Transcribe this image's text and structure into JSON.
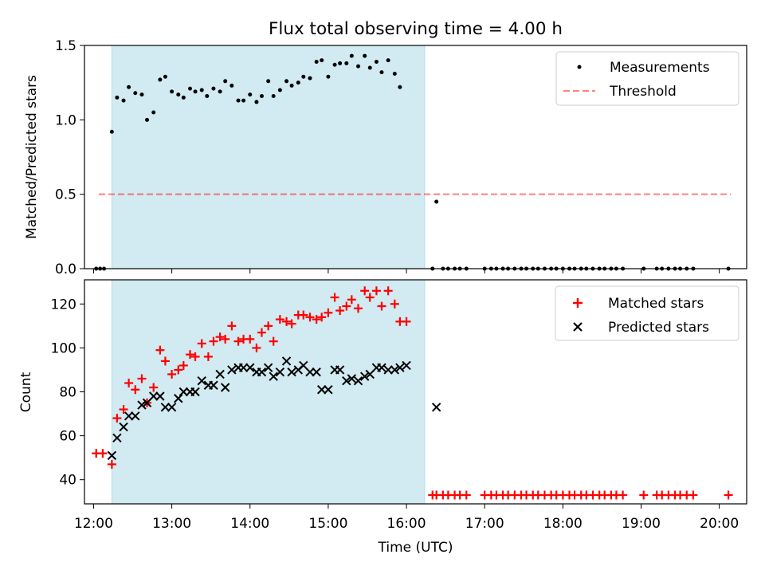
{
  "figure": {
    "title": "Flux total observing time = 4.00 h"
  },
  "chart_data": [
    {
      "type": "scatter",
      "panel": "top",
      "title": "Flux total observing time = 4.00 h",
      "xlabel": "",
      "ylabel": "Matched/Predicted stars",
      "xlim": [
        "11:53",
        "20:21"
      ],
      "ylim": [
        0.0,
        1.5
      ],
      "yticks": [
        0.0,
        0.5,
        1.0,
        1.5
      ],
      "ytick_labels": [
        "0.0",
        "0.5",
        "1.0",
        "1.5"
      ],
      "grid": false,
      "legend_position": "upper right",
      "shaded_span": {
        "start": "12:14",
        "end": "16:14",
        "color": "#add8e6"
      },
      "threshold": {
        "name": "Threshold",
        "value": 0.5,
        "x_start": "12:04",
        "x_end": "20:09",
        "color": "#ff0000",
        "style": "dashed"
      },
      "series": [
        {
          "name": "Measurements",
          "marker": "dot",
          "color": "#000000",
          "points": [
            [
              "12:02",
              0
            ],
            [
              "12:05",
              0
            ],
            [
              "12:08",
              0
            ],
            [
              "12:14",
              0.92
            ],
            [
              "12:18",
              1.15
            ],
            [
              "12:23",
              1.13
            ],
            [
              "12:27",
              1.22
            ],
            [
              "12:32",
              1.18
            ],
            [
              "12:37",
              1.17
            ],
            [
              "12:41",
              1.0
            ],
            [
              "12:46",
              1.05
            ],
            [
              "12:51",
              1.27
            ],
            [
              "12:55",
              1.29
            ],
            [
              "13:00",
              1.19
            ],
            [
              "13:05",
              1.17
            ],
            [
              "13:09",
              1.15
            ],
            [
              "13:14",
              1.21
            ],
            [
              "13:18",
              1.19
            ],
            [
              "13:23",
              1.2
            ],
            [
              "13:27",
              1.16
            ],
            [
              "13:32",
              1.21
            ],
            [
              "13:37",
              1.19
            ],
            [
              "13:41",
              1.26
            ],
            [
              "13:46",
              1.23
            ],
            [
              "13:51",
              1.13
            ],
            [
              "13:55",
              1.13
            ],
            [
              "14:00",
              1.17
            ],
            [
              "14:05",
              1.12
            ],
            [
              "14:09",
              1.16
            ],
            [
              "14:14",
              1.26
            ],
            [
              "14:18",
              1.16
            ],
            [
              "14:23",
              1.2
            ],
            [
              "14:28",
              1.26
            ],
            [
              "14:32",
              1.23
            ],
            [
              "14:37",
              1.25
            ],
            [
              "14:41",
              1.29
            ],
            [
              "14:46",
              1.28
            ],
            [
              "14:51",
              1.39
            ],
            [
              "14:55",
              1.4
            ],
            [
              "15:00",
              1.29
            ],
            [
              "15:05",
              1.37
            ],
            [
              "15:09",
              1.38
            ],
            [
              "15:14",
              1.38
            ],
            [
              "15:18",
              1.43
            ],
            [
              "15:23",
              1.36
            ],
            [
              "15:28",
              1.43
            ],
            [
              "15:32",
              1.35
            ],
            [
              "15:37",
              1.39
            ],
            [
              "15:41",
              1.32
            ],
            [
              "15:46",
              1.4
            ],
            [
              "15:51",
              1.31
            ],
            [
              "15:55",
              1.22
            ],
            [
              "16:23",
              0.45
            ],
            [
              "16:20",
              0
            ],
            [
              "16:28",
              0
            ],
            [
              "16:32",
              0
            ],
            [
              "16:37",
              0
            ],
            [
              "16:41",
              0
            ],
            [
              "16:46",
              0
            ],
            [
              "17:00",
              0
            ],
            [
              "17:05",
              0
            ],
            [
              "17:09",
              0
            ],
            [
              "17:14",
              0
            ],
            [
              "17:18",
              0
            ],
            [
              "17:23",
              0
            ],
            [
              "17:28",
              0
            ],
            [
              "17:32",
              0
            ],
            [
              "17:37",
              0
            ],
            [
              "17:41",
              0
            ],
            [
              "17:46",
              0
            ],
            [
              "17:51",
              0
            ],
            [
              "17:55",
              0
            ],
            [
              "18:00",
              0
            ],
            [
              "18:05",
              0
            ],
            [
              "18:09",
              0
            ],
            [
              "18:14",
              0
            ],
            [
              "18:18",
              0
            ],
            [
              "18:23",
              0
            ],
            [
              "18:28",
              0
            ],
            [
              "18:32",
              0
            ],
            [
              "18:37",
              0
            ],
            [
              "18:41",
              0
            ],
            [
              "18:46",
              0
            ],
            [
              "19:02",
              0
            ],
            [
              "19:12",
              0
            ],
            [
              "19:16",
              0
            ],
            [
              "19:21",
              0
            ],
            [
              "19:26",
              0
            ],
            [
              "19:30",
              0
            ],
            [
              "19:35",
              0
            ],
            [
              "19:40",
              0
            ],
            [
              "20:07",
              0
            ]
          ]
        }
      ]
    },
    {
      "type": "scatter",
      "panel": "bottom",
      "xlabel": "Time (UTC)",
      "ylabel": "Count",
      "xlim": [
        "11:53",
        "20:21"
      ],
      "ylim": [
        29,
        131
      ],
      "xticks": [
        "12:00",
        "13:00",
        "14:00",
        "15:00",
        "16:00",
        "17:00",
        "18:00",
        "19:00",
        "20:00"
      ],
      "yticks": [
        40,
        60,
        80,
        100,
        120
      ],
      "grid": false,
      "legend_position": "upper right",
      "shaded_span": {
        "start": "12:14",
        "end": "16:14",
        "color": "#add8e6"
      },
      "series": [
        {
          "name": "Matched stars",
          "marker": "plus",
          "color": "#ff0000",
          "points": [
            [
              "12:02",
              52
            ],
            [
              "12:07",
              52
            ],
            [
              "12:14",
              47
            ],
            [
              "12:18",
              68
            ],
            [
              "12:23",
              72
            ],
            [
              "12:27",
              84
            ],
            [
              "12:32",
              81
            ],
            [
              "12:37",
              86
            ],
            [
              "12:41",
              75
            ],
            [
              "12:46",
              82
            ],
            [
              "12:51",
              99
            ],
            [
              "12:55",
              94
            ],
            [
              "13:00",
              88
            ],
            [
              "13:05",
              90
            ],
            [
              "13:09",
              92
            ],
            [
              "13:14",
              97
            ],
            [
              "13:18",
              96
            ],
            [
              "13:23",
              102
            ],
            [
              "13:28",
              96
            ],
            [
              "13:32",
              103
            ],
            [
              "13:37",
              105
            ],
            [
              "13:41",
              104
            ],
            [
              "13:46",
              110
            ],
            [
              "13:51",
              103
            ],
            [
              "13:55",
              104
            ],
            [
              "14:00",
              104
            ],
            [
              "14:05",
              100
            ],
            [
              "14:09",
              107
            ],
            [
              "14:14",
              110
            ],
            [
              "14:18",
              103
            ],
            [
              "14:23",
              113
            ],
            [
              "14:28",
              112
            ],
            [
              "14:32",
              111
            ],
            [
              "14:37",
              115
            ],
            [
              "14:41",
              115
            ],
            [
              "14:46",
              114
            ],
            [
              "14:51",
              113
            ],
            [
              "14:55",
              114
            ],
            [
              "15:00",
              116
            ],
            [
              "15:05",
              123
            ],
            [
              "15:09",
              117
            ],
            [
              "15:14",
              119
            ],
            [
              "15:18",
              122
            ],
            [
              "15:23",
              118
            ],
            [
              "15:28",
              126
            ],
            [
              "15:32",
              123
            ],
            [
              "15:37",
              126
            ],
            [
              "15:41",
              119
            ],
            [
              "15:46",
              126
            ],
            [
              "15:51",
              120
            ],
            [
              "15:55",
              112
            ],
            [
              "16:00",
              112
            ],
            [
              "16:20",
              33
            ],
            [
              "16:23",
              33
            ],
            [
              "16:28",
              33
            ],
            [
              "16:32",
              33
            ],
            [
              "16:37",
              33
            ],
            [
              "16:41",
              33
            ],
            [
              "16:46",
              33
            ],
            [
              "17:00",
              33
            ],
            [
              "17:05",
              33
            ],
            [
              "17:09",
              33
            ],
            [
              "17:14",
              33
            ],
            [
              "17:18",
              33
            ],
            [
              "17:23",
              33
            ],
            [
              "17:28",
              33
            ],
            [
              "17:32",
              33
            ],
            [
              "17:37",
              33
            ],
            [
              "17:41",
              33
            ],
            [
              "17:46",
              33
            ],
            [
              "17:51",
              33
            ],
            [
              "17:55",
              33
            ],
            [
              "18:00",
              33
            ],
            [
              "18:05",
              33
            ],
            [
              "18:09",
              33
            ],
            [
              "18:14",
              33
            ],
            [
              "18:18",
              33
            ],
            [
              "18:23",
              33
            ],
            [
              "18:28",
              33
            ],
            [
              "18:32",
              33
            ],
            [
              "18:37",
              33
            ],
            [
              "18:41",
              33
            ],
            [
              "18:46",
              33
            ],
            [
              "19:02",
              33
            ],
            [
              "19:12",
              33
            ],
            [
              "19:16",
              33
            ],
            [
              "19:21",
              33
            ],
            [
              "19:26",
              33
            ],
            [
              "19:30",
              33
            ],
            [
              "19:35",
              33
            ],
            [
              "19:40",
              33
            ],
            [
              "20:07",
              33
            ]
          ]
        },
        {
          "name": "Predicted stars",
          "marker": "x",
          "color": "#000000",
          "points": [
            [
              "12:14",
              51
            ],
            [
              "12:18",
              59
            ],
            [
              "12:23",
              64
            ],
            [
              "12:27",
              69
            ],
            [
              "12:32",
              69
            ],
            [
              "12:37",
              74
            ],
            [
              "12:41",
              75
            ],
            [
              "12:46",
              78
            ],
            [
              "12:51",
              78
            ],
            [
              "12:55",
              73
            ],
            [
              "13:00",
              73
            ],
            [
              "13:05",
              77
            ],
            [
              "13:09",
              80
            ],
            [
              "13:14",
              80
            ],
            [
              "13:18",
              80
            ],
            [
              "13:23",
              85
            ],
            [
              "13:28",
              83
            ],
            [
              "13:32",
              83
            ],
            [
              "13:37",
              88
            ],
            [
              "13:41",
              82
            ],
            [
              "13:46",
              90
            ],
            [
              "13:51",
              91
            ],
            [
              "13:55",
              91
            ],
            [
              "14:00",
              91
            ],
            [
              "14:05",
              89
            ],
            [
              "14:09",
              89
            ],
            [
              "14:14",
              91
            ],
            [
              "14:18",
              87
            ],
            [
              "14:23",
              89
            ],
            [
              "14:28",
              94
            ],
            [
              "14:32",
              89
            ],
            [
              "14:37",
              90
            ],
            [
              "14:41",
              92
            ],
            [
              "14:46",
              89
            ],
            [
              "14:51",
              89
            ],
            [
              "14:55",
              81
            ],
            [
              "15:00",
              81
            ],
            [
              "15:05",
              90
            ],
            [
              "15:09",
              90
            ],
            [
              "15:14",
              85
            ],
            [
              "15:18",
              86
            ],
            [
              "15:23",
              85
            ],
            [
              "15:28",
              87
            ],
            [
              "15:32",
              88
            ],
            [
              "15:37",
              91
            ],
            [
              "15:41",
              91
            ],
            [
              "15:46",
              90
            ],
            [
              "15:51",
              90
            ],
            [
              "15:55",
              91
            ],
            [
              "16:00",
              92
            ],
            [
              "16:23",
              73
            ]
          ]
        }
      ]
    }
  ]
}
